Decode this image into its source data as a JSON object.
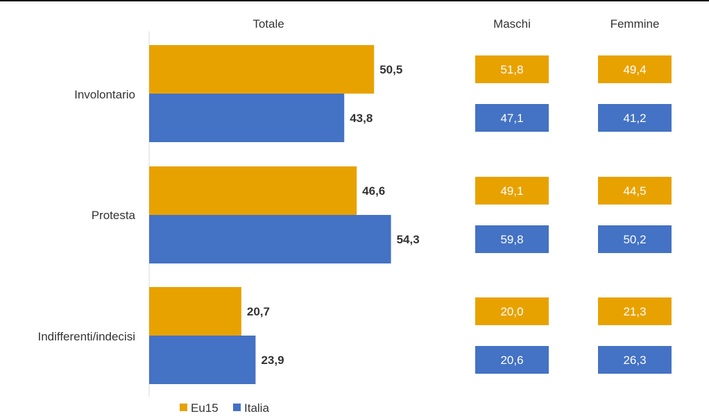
{
  "chart_data": {
    "type": "bar",
    "orientation": "horizontal",
    "panels": [
      "Totale",
      "Maschi",
      "Femmine"
    ],
    "categories": [
      "Involontario",
      "Protesta",
      "Indifferenti/indecisi"
    ],
    "series": [
      {
        "name": "Eu15",
        "color": "#E8A200",
        "totale": [
          "50,5",
          "46,6",
          "20,7"
        ],
        "maschi": [
          "51,8",
          "49,1",
          "20,0"
        ],
        "femmine": [
          "49,4",
          "44,5",
          "21,3"
        ]
      },
      {
        "name": "Italia",
        "color": "#4472C4",
        "totale": [
          "43,8",
          "54,3",
          "23,9"
        ],
        "maschi": [
          "47,1",
          "59,8",
          "20,6"
        ],
        "femmine": [
          "41,2",
          "50,2",
          "26,3"
        ]
      }
    ],
    "values": {
      "Eu15": [
        50.5,
        46.6,
        20.7
      ],
      "Italia": [
        43.8,
        54.3,
        23.9
      ]
    },
    "xlim": [
      0,
      80
    ],
    "grid": false,
    "legend_position": "bottom-left"
  }
}
